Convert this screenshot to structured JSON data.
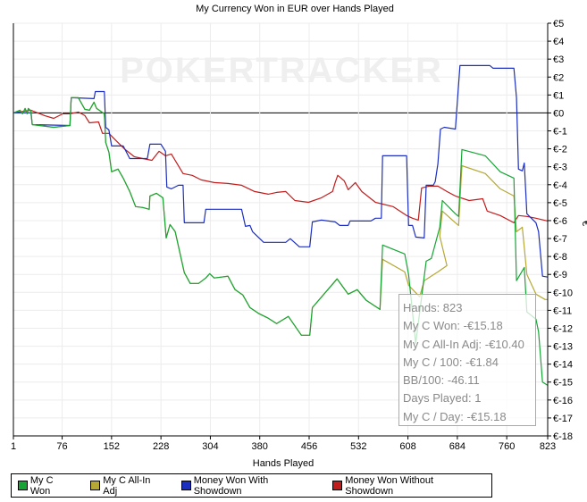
{
  "chart_data": {
    "type": "line",
    "title": "My Currency Won in EUR over Hands Played",
    "xlabel": "Hands Played",
    "ylabel": "€",
    "xlim": [
      1,
      823
    ],
    "ylim": [
      -18,
      5
    ],
    "x_ticks": [
      1,
      76,
      152,
      228,
      304,
      380,
      456,
      532,
      608,
      684,
      760,
      823
    ],
    "y_ticks": [
      5,
      4,
      3,
      2,
      1,
      0,
      -1,
      -2,
      -3,
      -4,
      -5,
      -6,
      -7,
      -8,
      -9,
      -10,
      -11,
      -12,
      -13,
      -14,
      -15,
      -16,
      -17,
      -18
    ],
    "y_tick_labels": [
      "€5",
      "€4",
      "€3",
      "€2",
      "€1",
      "€0",
      "€-1",
      "€-2",
      "€-3",
      "€-4",
      "€-5",
      "€-6",
      "€-7",
      "€-8",
      "€-9",
      "€-10",
      "€-11",
      "€-12",
      "€-13",
      "€-14",
      "€-15",
      "€-16",
      "€-17",
      "€-18"
    ],
    "grid": true,
    "legend_position": "bottom",
    "watermark": "POKERTRACKER",
    "series": [
      {
        "name": "My C Won",
        "color": "#16a535",
        "points": [
          [
            1,
            0
          ],
          [
            11,
            0.15
          ],
          [
            15,
            -0.05
          ],
          [
            19,
            0.25
          ],
          [
            22,
            -0.05
          ],
          [
            24,
            0.25
          ],
          [
            28,
            0.1
          ],
          [
            30,
            -0.65
          ],
          [
            63,
            -0.8
          ],
          [
            88,
            -0.7
          ],
          [
            90,
            0.85
          ],
          [
            101,
            0.85
          ],
          [
            111,
            0.2
          ],
          [
            118,
            0.15
          ],
          [
            125,
            0.6
          ],
          [
            129,
            0.25
          ],
          [
            141,
            -0.05
          ],
          [
            143,
            -1.64
          ],
          [
            148,
            -2.19
          ],
          [
            152,
            -3.28
          ],
          [
            162,
            -3.13
          ],
          [
            170,
            -3.63
          ],
          [
            180,
            -4.38
          ],
          [
            189,
            -5.22
          ],
          [
            200,
            -5.27
          ],
          [
            210,
            -5.37
          ],
          [
            211,
            -4.63
          ],
          [
            221,
            -4.48
          ],
          [
            231,
            -4.73
          ],
          [
            236,
            -6.97
          ],
          [
            242,
            -6.22
          ],
          [
            250,
            -6.62
          ],
          [
            264,
            -8.9
          ],
          [
            273,
            -9.5
          ],
          [
            286,
            -9.5
          ],
          [
            297,
            -9.2
          ],
          [
            303,
            -8.96
          ],
          [
            310,
            -9.2
          ],
          [
            321,
            -9.15
          ],
          [
            331,
            -9.1
          ],
          [
            342,
            -9.85
          ],
          [
            354,
            -10.15
          ],
          [
            365,
            -10.85
          ],
          [
            379,
            -11.19
          ],
          [
            393,
            -11.44
          ],
          [
            406,
            -11.74
          ],
          [
            424,
            -11.34
          ],
          [
            444,
            -12.39
          ],
          [
            457,
            -12.39
          ],
          [
            461,
            -10.85
          ],
          [
            499,
            -9.25
          ],
          [
            516,
            -10.1
          ],
          [
            530,
            -9.85
          ],
          [
            544,
            -10.45
          ],
          [
            565,
            -10.95
          ],
          [
            569,
            -7.36
          ],
          [
            603,
            -7.86
          ],
          [
            609,
            -9.0
          ],
          [
            620,
            -12.84
          ],
          [
            636,
            -8.26
          ],
          [
            644,
            -8.11
          ],
          [
            657,
            -6.37
          ],
          [
            661,
            -4.88
          ],
          [
            681,
            -5.62
          ],
          [
            686,
            -5.77
          ],
          [
            691,
            -2.04
          ],
          [
            727,
            -2.39
          ],
          [
            750,
            -3.28
          ],
          [
            771,
            -3.63
          ],
          [
            775,
            -9.35
          ],
          [
            787,
            -8.61
          ],
          [
            791,
            -11.09
          ],
          [
            805,
            -11.5
          ],
          [
            809,
            -12.2
          ],
          [
            815,
            -15.0
          ],
          [
            823,
            -15.18
          ]
        ]
      },
      {
        "name": "My C All-In Adj",
        "color": "#b5a834",
        "points": [
          [
            1,
            0
          ],
          [
            11,
            0.15
          ],
          [
            15,
            -0.05
          ],
          [
            19,
            0.25
          ],
          [
            22,
            -0.05
          ],
          [
            24,
            0.25
          ],
          [
            28,
            0.1
          ],
          [
            30,
            -0.65
          ],
          [
            63,
            -0.8
          ],
          [
            88,
            -0.7
          ],
          [
            90,
            0.85
          ],
          [
            101,
            0.85
          ],
          [
            111,
            0.2
          ],
          [
            118,
            0.15
          ],
          [
            125,
            0.6
          ],
          [
            129,
            0.25
          ],
          [
            141,
            -0.05
          ],
          [
            143,
            -1.64
          ],
          [
            148,
            -2.19
          ],
          [
            152,
            -3.28
          ],
          [
            162,
            -3.13
          ],
          [
            170,
            -3.63
          ],
          [
            180,
            -4.38
          ],
          [
            189,
            -5.22
          ],
          [
            200,
            -5.27
          ],
          [
            210,
            -5.37
          ],
          [
            211,
            -4.63
          ],
          [
            221,
            -4.48
          ],
          [
            231,
            -4.73
          ],
          [
            236,
            -6.97
          ],
          [
            242,
            -6.22
          ],
          [
            250,
            -6.62
          ],
          [
            264,
            -8.9
          ],
          [
            273,
            -9.5
          ],
          [
            286,
            -9.5
          ],
          [
            297,
            -9.2
          ],
          [
            303,
            -8.96
          ],
          [
            310,
            -9.2
          ],
          [
            321,
            -9.15
          ],
          [
            331,
            -9.1
          ],
          [
            342,
            -9.85
          ],
          [
            354,
            -10.15
          ],
          [
            365,
            -10.85
          ],
          [
            379,
            -11.19
          ],
          [
            393,
            -11.44
          ],
          [
            406,
            -11.74
          ],
          [
            424,
            -11.34
          ],
          [
            444,
            -12.39
          ],
          [
            457,
            -12.39
          ],
          [
            461,
            -10.85
          ],
          [
            499,
            -9.25
          ],
          [
            516,
            -10.1
          ],
          [
            530,
            -9.85
          ],
          [
            544,
            -10.45
          ],
          [
            565,
            -10.95
          ],
          [
            569,
            -8.16
          ],
          [
            603,
            -8.86
          ],
          [
            609,
            -9.6
          ],
          [
            626,
            -10.25
          ],
          [
            633,
            -9.35
          ],
          [
            654,
            -8.86
          ],
          [
            668,
            -8.51
          ],
          [
            657,
            -6.87
          ],
          [
            661,
            -5.47
          ],
          [
            681,
            -6.12
          ],
          [
            686,
            -6.27
          ],
          [
            691,
            -2.94
          ],
          [
            727,
            -3.38
          ],
          [
            750,
            -4.23
          ],
          [
            771,
            -4.63
          ],
          [
            775,
            -6.62
          ],
          [
            784,
            -6.37
          ],
          [
            791,
            -9.0
          ],
          [
            805,
            -10.1
          ],
          [
            819,
            -10.4
          ],
          [
            823,
            -10.4
          ]
        ]
      },
      {
        "name": "Money Won With Showdown",
        "color": "#1c2fbf",
        "points": [
          [
            1,
            0
          ],
          [
            28,
            0
          ],
          [
            30,
            -0.65
          ],
          [
            88,
            -0.7
          ],
          [
            90,
            0.85
          ],
          [
            125,
            0.8
          ],
          [
            127,
            1.19
          ],
          [
            141,
            1.19
          ],
          [
            143,
            -0.8
          ],
          [
            148,
            -0.95
          ],
          [
            152,
            -1.84
          ],
          [
            170,
            -1.84
          ],
          [
            180,
            -2.54
          ],
          [
            207,
            -2.54
          ],
          [
            211,
            -1.74
          ],
          [
            228,
            -1.74
          ],
          [
            235,
            -2.14
          ],
          [
            237,
            -4.13
          ],
          [
            244,
            -4.23
          ],
          [
            255,
            -4.03
          ],
          [
            262,
            -4.03
          ],
          [
            264,
            -6.12
          ],
          [
            294,
            -6.12
          ],
          [
            297,
            -5.37
          ],
          [
            352,
            -5.37
          ],
          [
            358,
            -6.32
          ],
          [
            365,
            -6.27
          ],
          [
            369,
            -6.62
          ],
          [
            386,
            -7.21
          ],
          [
            420,
            -7.21
          ],
          [
            427,
            -7.01
          ],
          [
            441,
            -7.46
          ],
          [
            457,
            -7.46
          ],
          [
            461,
            -6.07
          ],
          [
            475,
            -5.97
          ],
          [
            496,
            -6.07
          ],
          [
            503,
            -6.27
          ],
          [
            516,
            -6.27
          ],
          [
            519,
            -6.02
          ],
          [
            551,
            -6.02
          ],
          [
            558,
            -5.87
          ],
          [
            567,
            -5.87
          ],
          [
            569,
            -2.39
          ],
          [
            606,
            -2.39
          ],
          [
            609,
            -6.27
          ],
          [
            615,
            -6.27
          ],
          [
            620,
            -6.92
          ],
          [
            633,
            -6.97
          ],
          [
            636,
            -4.03
          ],
          [
            647,
            -4.03
          ],
          [
            650,
            -3.83
          ],
          [
            654,
            -2.84
          ],
          [
            658,
            -0.9
          ],
          [
            664,
            -0.8
          ],
          [
            681,
            -0.9
          ],
          [
            688,
            2.64
          ],
          [
            734,
            2.64
          ],
          [
            739,
            2.49
          ],
          [
            771,
            2.49
          ],
          [
            775,
            0.85
          ],
          [
            778,
            -3.13
          ],
          [
            784,
            -3.23
          ],
          [
            787,
            -2.79
          ],
          [
            791,
            -5.62
          ],
          [
            805,
            -6.12
          ],
          [
            809,
            -6.62
          ],
          [
            815,
            -9.1
          ],
          [
            823,
            -9.15
          ]
        ]
      },
      {
        "name": "Money Won Without Showdown",
        "color": "#c21d1d",
        "points": [
          [
            1,
            0
          ],
          [
            28,
            0.15
          ],
          [
            49,
            -0.15
          ],
          [
            63,
            -0.3
          ],
          [
            77,
            -0.05
          ],
          [
            88,
            -0.05
          ],
          [
            101,
            0.05
          ],
          [
            111,
            -0.15
          ],
          [
            118,
            -0.55
          ],
          [
            132,
            -0.5
          ],
          [
            138,
            -1.14
          ],
          [
            148,
            -1.14
          ],
          [
            159,
            -1.54
          ],
          [
            173,
            -2.04
          ],
          [
            187,
            -2.44
          ],
          [
            200,
            -2.54
          ],
          [
            214,
            -2.64
          ],
          [
            225,
            -2.14
          ],
          [
            235,
            -2.39
          ],
          [
            244,
            -2.29
          ],
          [
            262,
            -3.38
          ],
          [
            276,
            -3.48
          ],
          [
            290,
            -3.73
          ],
          [
            310,
            -3.88
          ],
          [
            331,
            -3.93
          ],
          [
            352,
            -4.03
          ],
          [
            372,
            -4.38
          ],
          [
            393,
            -4.53
          ],
          [
            406,
            -4.43
          ],
          [
            420,
            -4.38
          ],
          [
            434,
            -4.88
          ],
          [
            455,
            -4.98
          ],
          [
            475,
            -4.73
          ],
          [
            492,
            -4.38
          ],
          [
            496,
            -3.88
          ],
          [
            500,
            -3.48
          ],
          [
            510,
            -3.78
          ],
          [
            516,
            -4.28
          ],
          [
            527,
            -3.88
          ],
          [
            537,
            -4.38
          ],
          [
            558,
            -4.98
          ],
          [
            585,
            -5.22
          ],
          [
            606,
            -5.72
          ],
          [
            615,
            -5.87
          ],
          [
            624,
            -5.97
          ],
          [
            629,
            -4.18
          ],
          [
            640,
            -4.08
          ],
          [
            654,
            -4.08
          ],
          [
            668,
            -4.38
          ],
          [
            681,
            -4.63
          ],
          [
            702,
            -4.88
          ],
          [
            723,
            -4.78
          ],
          [
            730,
            -5.47
          ],
          [
            750,
            -5.72
          ],
          [
            771,
            -6.12
          ],
          [
            778,
            -5.72
          ],
          [
            791,
            -5.77
          ],
          [
            805,
            -5.87
          ],
          [
            823,
            -6.02
          ]
        ]
      }
    ]
  },
  "stats": {
    "hands": "Hands: 823",
    "won": "My C Won: -€15.18",
    "allin": "My C All-In Adj: -€10.40",
    "per100": "My C / 100: -€1.84",
    "bb100": "BB/100: -46.11",
    "days": "Days Played: 1",
    "perday": "My C / Day: -€15.18"
  }
}
